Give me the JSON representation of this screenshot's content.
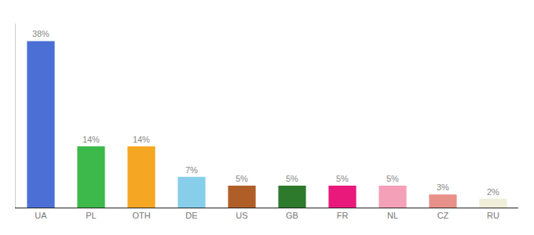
{
  "chart_data": {
    "type": "bar",
    "categories": [
      "UA",
      "PL",
      "OTH",
      "DE",
      "US",
      "GB",
      "FR",
      "NL",
      "CZ",
      "RU"
    ],
    "values": [
      38,
      14,
      14,
      7,
      5,
      5,
      5,
      5,
      3,
      2
    ],
    "value_labels": [
      "38%",
      "14%",
      "14%",
      "7%",
      "5%",
      "5%",
      "5%",
      "5%",
      "3%",
      "2%"
    ],
    "colors": [
      "#4b6fd4",
      "#3db84a",
      "#f5a623",
      "#87ceeb",
      "#b05e28",
      "#2d7a2d",
      "#e8197a",
      "#f4a0b8",
      "#e8908a",
      "#f0eed8"
    ],
    "ylim": [
      0,
      42
    ],
    "grid": false,
    "data_labels": true,
    "tick_labels": "x"
  }
}
